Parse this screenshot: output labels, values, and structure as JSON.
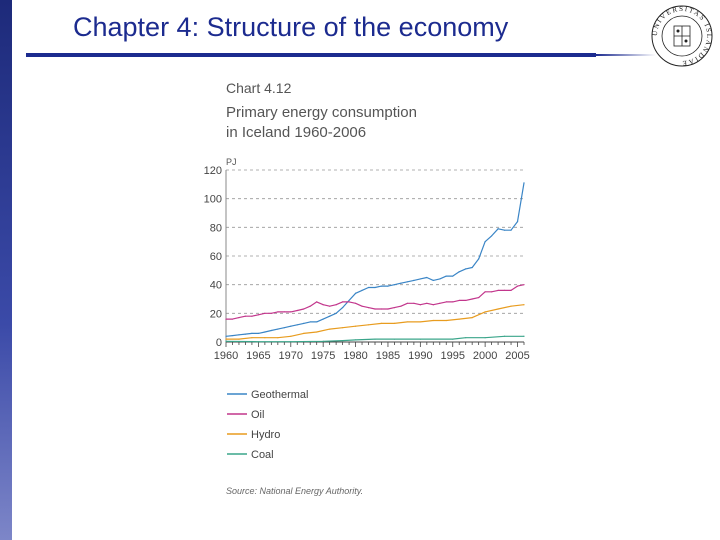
{
  "slide": {
    "title": "Chapter 4: Structure of the economy",
    "seal_text": "UNIVERSITAS ISLANDIAE"
  },
  "chart_header": {
    "number": "Chart 4.12",
    "title_line1": "Primary energy consumption",
    "title_line2": "in Iceland 1960-2006",
    "unit": "PJ"
  },
  "source": "Source: National Energy Authority.",
  "colors": {
    "slide_accent": "#1c2b8f",
    "geothermal": "#3a85c6",
    "oil": "#c2368c",
    "hydro": "#e89c1f",
    "coal": "#3aa58a"
  },
  "chart_data": {
    "type": "line",
    "title": "Primary energy consumption in Iceland 1960-2006",
    "xlabel": "",
    "ylabel": "PJ",
    "xlim": [
      1960,
      2006
    ],
    "ylim": [
      0,
      120
    ],
    "yticks": [
      0,
      20,
      40,
      60,
      80,
      100,
      120
    ],
    "xticks": [
      1960,
      1965,
      1970,
      1975,
      1980,
      1985,
      1990,
      1995,
      2000,
      2005
    ],
    "grid": "horizontal-dashed",
    "legend_position": "bottom",
    "series": [
      {
        "name": "Geothermal",
        "color": "#3a85c6",
        "x": [
          1960,
          1961,
          1962,
          1963,
          1964,
          1965,
          1966,
          1967,
          1968,
          1969,
          1970,
          1971,
          1972,
          1973,
          1974,
          1975,
          1976,
          1977,
          1978,
          1979,
          1980,
          1981,
          1982,
          1983,
          1984,
          1985,
          1986,
          1987,
          1988,
          1989,
          1990,
          1991,
          1992,
          1993,
          1994,
          1995,
          1996,
          1997,
          1998,
          1999,
          2000,
          2001,
          2002,
          2003,
          2004,
          2005,
          2006
        ],
        "values": [
          4,
          4.5,
          5,
          5.5,
          6,
          6,
          7,
          8,
          9,
          10,
          11,
          12,
          13,
          14,
          14,
          16,
          18,
          20,
          24,
          29,
          34,
          36,
          38,
          38,
          39,
          39,
          40,
          41,
          42,
          43,
          44,
          45,
          43,
          44,
          46,
          46,
          49,
          51,
          52,
          58,
          70,
          74,
          79,
          78,
          78,
          84,
          111
        ]
      },
      {
        "name": "Oil",
        "color": "#c2368c",
        "x": [
          1960,
          1961,
          1962,
          1963,
          1964,
          1965,
          1966,
          1967,
          1968,
          1969,
          1970,
          1971,
          1972,
          1973,
          1974,
          1975,
          1976,
          1977,
          1978,
          1979,
          1980,
          1981,
          1982,
          1983,
          1984,
          1985,
          1986,
          1987,
          1988,
          1989,
          1990,
          1991,
          1992,
          1993,
          1994,
          1995,
          1996,
          1997,
          1998,
          1999,
          2000,
          2001,
          2002,
          2003,
          2004,
          2005,
          2006
        ],
        "values": [
          16,
          16,
          17,
          18,
          18,
          19,
          20,
          20,
          21,
          21,
          21,
          22,
          23,
          25,
          28,
          26,
          25,
          26,
          28,
          28,
          27,
          25,
          24,
          23,
          23,
          23,
          24,
          25,
          27,
          27,
          26,
          27,
          26,
          27,
          28,
          28,
          29,
          29,
          30,
          31,
          35,
          35,
          36,
          36,
          36,
          39,
          40
        ]
      },
      {
        "name": "Hydro",
        "color": "#e89c1f",
        "x": [
          1960,
          1962,
          1964,
          1966,
          1968,
          1970,
          1972,
          1974,
          1976,
          1978,
          1980,
          1982,
          1984,
          1986,
          1988,
          1990,
          1992,
          1994,
          1996,
          1998,
          2000,
          2002,
          2004,
          2006
        ],
        "values": [
          2,
          2,
          3,
          3,
          3,
          4,
          6,
          7,
          9,
          10,
          11,
          12,
          13,
          13,
          14,
          14,
          15,
          15,
          16,
          17,
          21,
          23,
          25,
          26
        ]
      },
      {
        "name": "Coal",
        "color": "#3aa58a",
        "x": [
          1960,
          1965,
          1970,
          1975,
          1978,
          1980,
          1983,
          1986,
          1990,
          1995,
          1997,
          2000,
          2003,
          2006
        ],
        "values": [
          0.5,
          0.2,
          0.2,
          0.5,
          1,
          1.5,
          2,
          2,
          2,
          2,
          3,
          3,
          4,
          4
        ]
      }
    ]
  }
}
